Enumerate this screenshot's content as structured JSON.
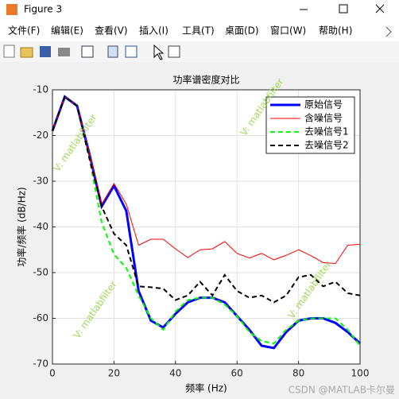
{
  "window": {
    "title": "Figure 3",
    "menu": [
      "文件(F)",
      "编辑(E)",
      "查看(V)",
      "插入(I)",
      "工具(T)",
      "桌面(D)",
      "窗口(W)",
      "帮助(H)"
    ]
  },
  "watermark": "V: matlabfilter",
  "credit": "CSDN @MATLAB卡尔曼",
  "chart_data": {
    "type": "line",
    "title": "功率谱密度对比",
    "x_label": "频率 (Hz)",
    "y_label": "功率/频率 (dB/Hz)",
    "x": [
      0,
      4,
      8,
      12,
      16,
      20,
      24,
      28,
      32,
      36,
      40,
      44,
      48,
      52,
      56,
      60,
      64,
      68,
      72,
      76,
      80,
      84,
      88,
      92,
      96,
      100
    ],
    "series": [
      {
        "name": "原始信号",
        "color": "#0000ff",
        "width": 3,
        "dashed": false,
        "values": [
          -19,
          -11.5,
          -13.5,
          -24,
          -35.5,
          -31,
          -36.5,
          -54,
          -60.5,
          -62,
          -59,
          -56.5,
          -55.5,
          -55.5,
          -56.5,
          -59.5,
          -62.5,
          -66,
          -66.5,
          -63,
          -60.5,
          -60,
          -60,
          -61,
          -63,
          -65.5
        ]
      },
      {
        "name": "含噪信号",
        "color": "#ff0000",
        "width": 1,
        "dashed": false,
        "values": [
          -19,
          -11.5,
          -13.5,
          -24,
          -35,
          -30.5,
          -35,
          -44,
          -42.7,
          -42.7,
          -44.8,
          -46.7,
          -45,
          -44.8,
          -43.2,
          -45.8,
          -46.8,
          -45.8,
          -47.2,
          -46.2,
          -45,
          -46.3,
          -47.8,
          -48,
          -44,
          -43.8
        ]
      },
      {
        "name": "去噪信号1",
        "color": "#00ff00",
        "width": 2,
        "dashed": true,
        "values": [
          -19,
          -11.5,
          -13.5,
          -25,
          -39,
          -46,
          -49,
          -55,
          -60,
          -62.5,
          -58.5,
          -56,
          -55.5,
          -55.5,
          -57,
          -59.5,
          -63,
          -65,
          -65.5,
          -62.5,
          -60.5,
          -60,
          -60,
          -60,
          -62.5,
          -66
        ]
      },
      {
        "name": "去噪信号2",
        "color": "#000000",
        "width": 2,
        "dashed": true,
        "values": [
          -19,
          -11.5,
          -13.5,
          -25,
          -35.5,
          -41.5,
          -44,
          -53,
          -53.2,
          -53.5,
          -56,
          -55,
          -52,
          -55,
          -50.5,
          -54,
          -55.5,
          -55,
          -56.5,
          -55,
          -51,
          -50.5,
          -53,
          -52,
          -54.5,
          -55
        ]
      }
    ],
    "xlim": [
      0,
      100
    ],
    "xticks": [
      0,
      20,
      40,
      60,
      80,
      100
    ],
    "ylim": [
      -70,
      -10
    ],
    "yticks": [
      -70,
      -60,
      -50,
      -40,
      -30,
      -20,
      -10
    ],
    "grid": true,
    "legend": "upper right"
  }
}
